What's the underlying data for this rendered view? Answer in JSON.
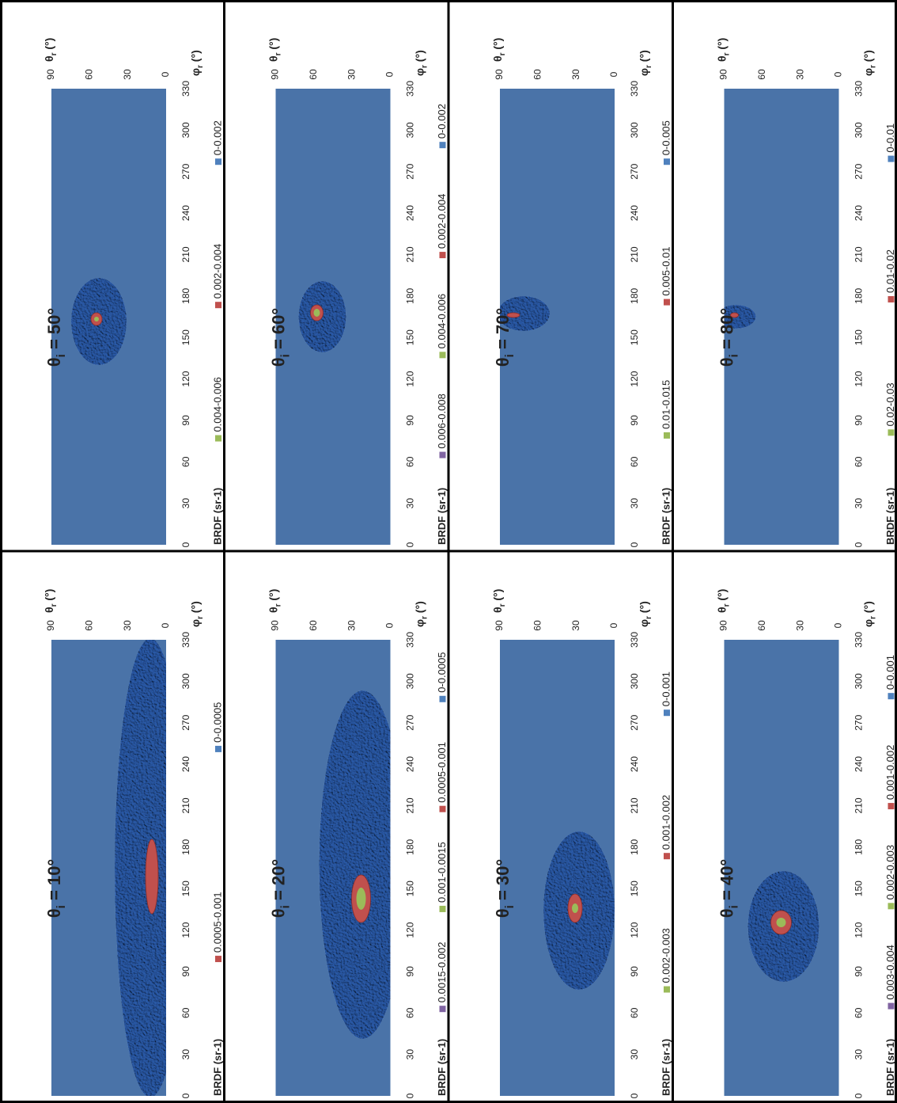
{
  "chart_data": [
    {
      "type": "surface",
      "title": {
        "base": "θ",
        "sub": "i",
        "rest": " = 10°"
      },
      "x_label": {
        "base": "φ",
        "sub": "r",
        "rest": " (°)"
      },
      "y_label": {
        "base": "θ",
        "sub": "r",
        "rest": " (°)"
      },
      "xlim": [
        0,
        330
      ],
      "xticks": [
        0,
        30,
        60,
        90,
        120,
        150,
        180,
        210,
        240,
        270,
        300,
        330
      ],
      "ylim": [
        0,
        90
      ],
      "yticks": [
        0,
        30,
        60,
        90
      ],
      "legend_title": "BRDF (sr-1)",
      "background": "#4a73a8",
      "legend": [
        {
          "name": "0.0005-0.001",
          "color": "#c0504d"
        },
        {
          "name": "0-0.0005",
          "color": "#4f81bd"
        }
      ]
    },
    {
      "type": "surface",
      "title": {
        "base": "θ",
        "sub": "i",
        "rest": " = 20°"
      },
      "x_label": {
        "base": "φ",
        "sub": "r",
        "rest": " (°)"
      },
      "y_label": {
        "base": "θ",
        "sub": "r",
        "rest": " (°)"
      },
      "xlim": [
        0,
        330
      ],
      "xticks": [
        0,
        30,
        60,
        90,
        120,
        150,
        180,
        210,
        240,
        270,
        300,
        330
      ],
      "ylim": [
        0,
        90
      ],
      "yticks": [
        0,
        30,
        60,
        90
      ],
      "legend_title": "BRDF (sr-1)",
      "background": "#4a73a8",
      "legend": [
        {
          "name": "0.0015-0.002",
          "color": "#8064a2"
        },
        {
          "name": "0.001-0.0015",
          "color": "#9bbb59"
        },
        {
          "name": "0.0005-0.001",
          "color": "#c0504d"
        },
        {
          "name": "0-0.0005",
          "color": "#4f81bd"
        }
      ]
    },
    {
      "type": "surface",
      "title": {
        "base": "θ",
        "sub": "i",
        "rest": " = 30°"
      },
      "x_label": {
        "base": "φ",
        "sub": "r",
        "rest": " (°)"
      },
      "y_label": {
        "base": "θ",
        "sub": "r",
        "rest": " (°)"
      },
      "xlim": [
        0,
        330
      ],
      "xticks": [
        0,
        30,
        60,
        90,
        120,
        150,
        180,
        210,
        240,
        270,
        300,
        330
      ],
      "ylim": [
        0,
        90
      ],
      "yticks": [
        0,
        30,
        60,
        90
      ],
      "legend_title": "BRDF (sr-1)",
      "background": "#4a73a8",
      "legend": [
        {
          "name": "0.002-0.003",
          "color": "#9bbb59"
        },
        {
          "name": "0.001-0.002",
          "color": "#c0504d"
        },
        {
          "name": "0-0.001",
          "color": "#4f81bd"
        }
      ]
    },
    {
      "type": "surface",
      "title": {
        "base": "θ",
        "sub": "i",
        "rest": " = 40°"
      },
      "x_label": {
        "base": "φ",
        "sub": "r",
        "rest": " (°)"
      },
      "y_label": {
        "base": "θ",
        "sub": "r",
        "rest": " (°)"
      },
      "xlim": [
        0,
        330
      ],
      "xticks": [
        0,
        30,
        60,
        90,
        120,
        150,
        180,
        210,
        240,
        270,
        300,
        330
      ],
      "ylim": [
        0,
        90
      ],
      "yticks": [
        0,
        30,
        60,
        90
      ],
      "legend_title": "BRDF (sr-1)",
      "background": "#4a73a8",
      "legend": [
        {
          "name": "0.003-0.004",
          "color": "#8064a2"
        },
        {
          "name": "0.002-0.003",
          "color": "#9bbb59"
        },
        {
          "name": "0.001-0.002",
          "color": "#c0504d"
        },
        {
          "name": "0-0.001",
          "color": "#4f81bd"
        }
      ]
    },
    {
      "type": "surface",
      "title": {
        "base": "θ",
        "sub": "i",
        "rest": " = 50°"
      },
      "x_label": {
        "base": "φ",
        "sub": "r",
        "rest": " (°)"
      },
      "y_label": {
        "base": "θ",
        "sub": "r",
        "rest": " (°)"
      },
      "xlim": [
        0,
        330
      ],
      "xticks": [
        0,
        30,
        60,
        90,
        120,
        150,
        180,
        210,
        240,
        270,
        300,
        330
      ],
      "ylim": [
        0,
        90
      ],
      "yticks": [
        0,
        30,
        60,
        90
      ],
      "legend_title": "BRDF (sr-1)",
      "background": "#4a73a8",
      "legend": [
        {
          "name": "0.004-0.006",
          "color": "#9bbb59"
        },
        {
          "name": "0.002-0.004",
          "color": "#c0504d"
        },
        {
          "name": "0-0.002",
          "color": "#4f81bd"
        }
      ]
    },
    {
      "type": "surface",
      "title": {
        "base": "θ",
        "sub": "i",
        "rest": " = 60°"
      },
      "x_label": {
        "base": "φ",
        "sub": "r",
        "rest": " (°)"
      },
      "y_label": {
        "base": "θ",
        "sub": "r",
        "rest": " (°)"
      },
      "xlim": [
        0,
        330
      ],
      "xticks": [
        0,
        30,
        60,
        90,
        120,
        150,
        180,
        210,
        240,
        270,
        300,
        330
      ],
      "ylim": [
        0,
        90
      ],
      "yticks": [
        0,
        30,
        60,
        90
      ],
      "legend_title": "BRDF (sr-1)",
      "background": "#4a73a8",
      "legend": [
        {
          "name": "0.006-0.008",
          "color": "#8064a2"
        },
        {
          "name": "0.004-0.006",
          "color": "#9bbb59"
        },
        {
          "name": "0.002-0.004",
          "color": "#c0504d"
        },
        {
          "name": "0-0.002",
          "color": "#4f81bd"
        }
      ]
    },
    {
      "type": "surface",
      "title": {
        "base": "θ",
        "sub": "i",
        "rest": " = 70°"
      },
      "x_label": {
        "base": "φ",
        "sub": "r",
        "rest": " (°)"
      },
      "y_label": {
        "base": "θ",
        "sub": "r",
        "rest": " (°)"
      },
      "xlim": [
        0,
        330
      ],
      "xticks": [
        0,
        30,
        60,
        90,
        120,
        150,
        180,
        210,
        240,
        270,
        300,
        330
      ],
      "ylim": [
        0,
        90
      ],
      "yticks": [
        0,
        30,
        60,
        90
      ],
      "legend_title": "BRDF (sr-1)",
      "background": "#4a73a8",
      "legend": [
        {
          "name": "0.01-0.015",
          "color": "#9bbb59"
        },
        {
          "name": "0.005-0.01",
          "color": "#c0504d"
        },
        {
          "name": "0-0.005",
          "color": "#4f81bd"
        }
      ]
    },
    {
      "type": "surface",
      "title": {
        "base": "θ",
        "sub": "i",
        "rest": " = 80°"
      },
      "x_label": {
        "base": "φ",
        "sub": "r",
        "rest": " (°)"
      },
      "y_label": {
        "base": "θ",
        "sub": "r",
        "rest": " (°)"
      },
      "xlim": [
        0,
        330
      ],
      "xticks": [
        0,
        30,
        60,
        90,
        120,
        150,
        180,
        210,
        240,
        270,
        300,
        330
      ],
      "ylim": [
        0,
        90
      ],
      "yticks": [
        0,
        30,
        60,
        90
      ],
      "legend_title": "BRDF (sr-1)",
      "background": "#4a73a8",
      "legend": [
        {
          "name": "0.02-0.03",
          "color": "#9bbb59"
        },
        {
          "name": "0.01-0.02",
          "color": "#c0504d"
        },
        {
          "name": "0-0.01",
          "color": "#4f81bd"
        }
      ]
    }
  ]
}
